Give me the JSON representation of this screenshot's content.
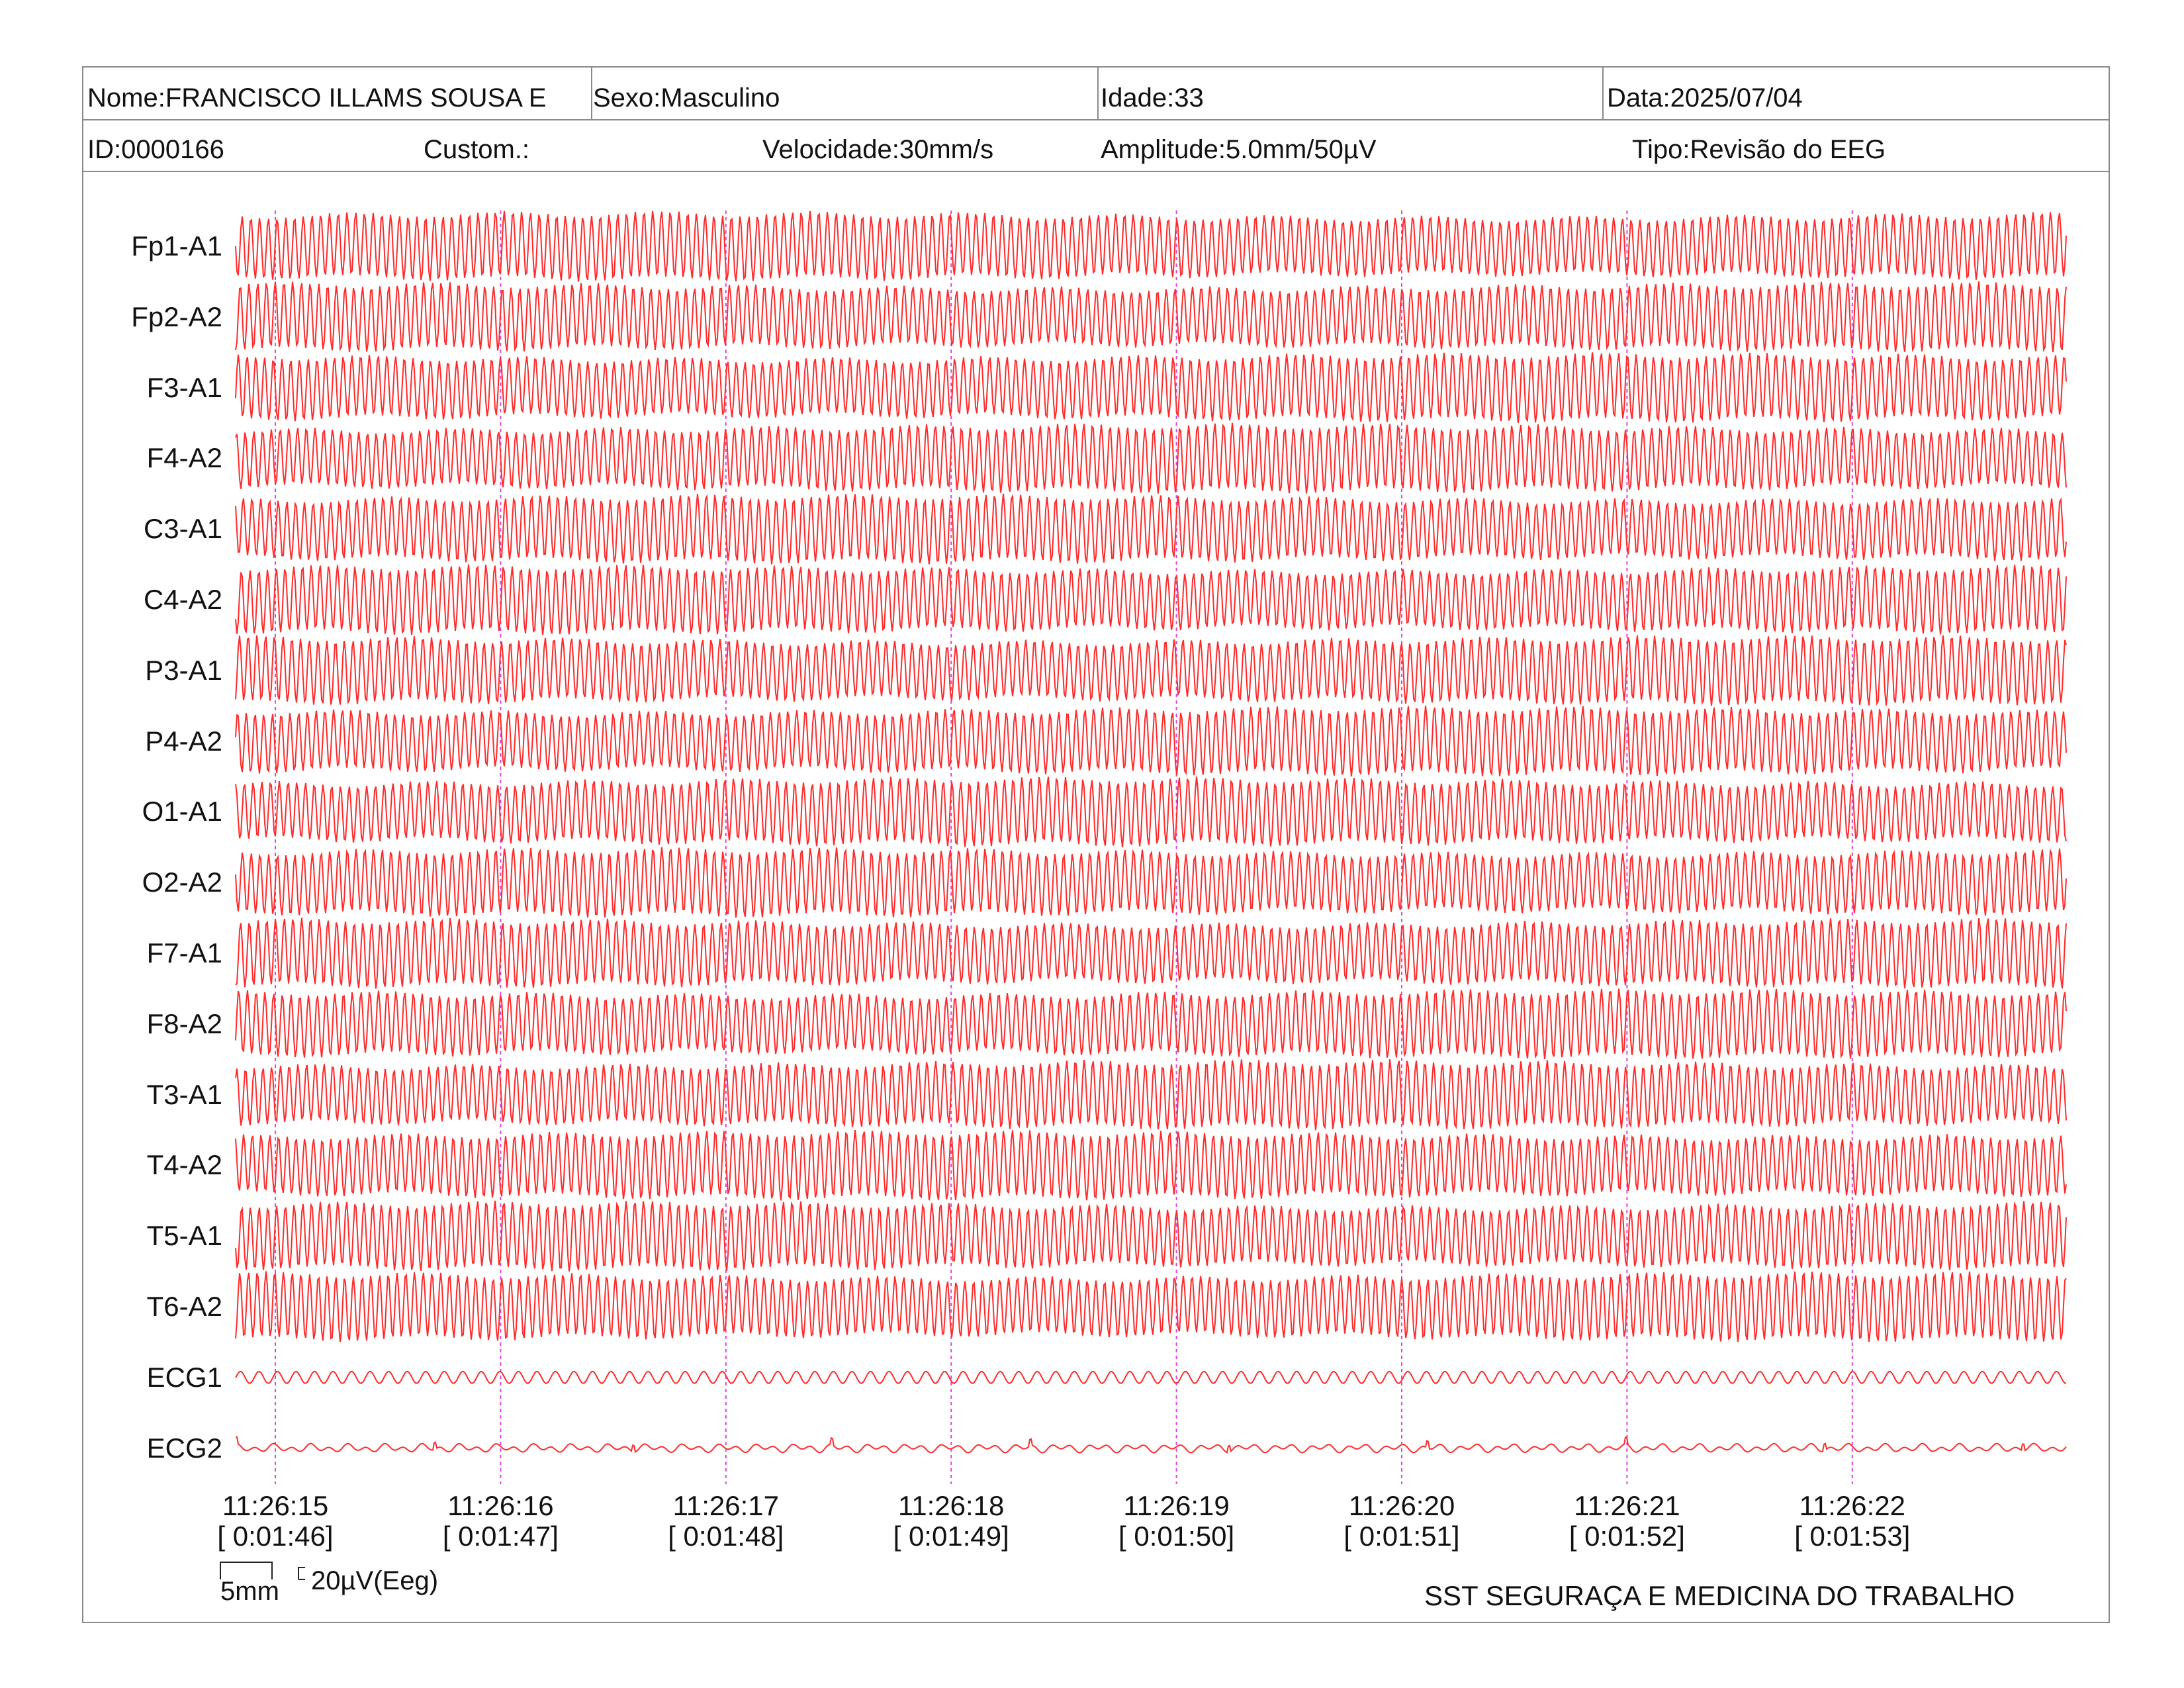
{
  "header": {
    "nome": "Nome:FRANCISCO ILLAMS SOUSA E",
    "sexo": "Sexo:Masculino",
    "idade": "Idade:33",
    "data": "Data:2025/07/04",
    "id": "ID:0000166",
    "custom": "Custom.:",
    "velocidade": "Velocidade:30mm/s",
    "amplitude": "Amplitude:5.0mm/50µV",
    "tipo": "Tipo:Revisão do EEG"
  },
  "chart_data": {
    "type": "line",
    "trace_color": "#ff2a2a",
    "marker_color": "#e040e0",
    "channels": [
      "Fp1-A1",
      "Fp2-A2",
      "F3-A1",
      "F4-A2",
      "C3-A1",
      "C4-A2",
      "P3-A1",
      "P4-A2",
      "O1-A1",
      "O2-A2",
      "F7-A1",
      "F8-A2",
      "T3-A1",
      "T4-A2",
      "T5-A1",
      "T6-A2",
      "ECG1",
      "ECG2"
    ],
    "time_marks": [
      {
        "time": "11:26:15",
        "elapsed": "[ 0:01:46]"
      },
      {
        "time": "11:26:16",
        "elapsed": "[ 0:01:47]"
      },
      {
        "time": "11:26:17",
        "elapsed": "[ 0:01:48]"
      },
      {
        "time": "11:26:18",
        "elapsed": "[ 0:01:49]"
      },
      {
        "time": "11:26:19",
        "elapsed": "[ 0:01:50]"
      },
      {
        "time": "11:26:20",
        "elapsed": "[ 0:01:51]"
      },
      {
        "time": "11:26:21",
        "elapsed": "[ 0:01:52]"
      },
      {
        "time": "11:26:22",
        "elapsed": "[ 0:01:53]"
      }
    ]
  },
  "scale": {
    "time_label": "5mm",
    "amplitude_label": "20µV(Eeg)"
  },
  "footer": {
    "company": "SST SEGURAÇA E MEDICINA DO TRABALHO"
  }
}
